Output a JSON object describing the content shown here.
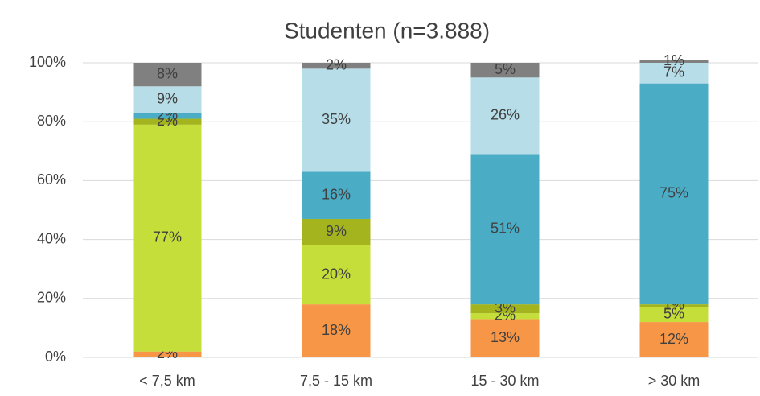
{
  "chart_data": {
    "type": "stacked_bar",
    "title": "Studenten (n=3.888)",
    "categories": [
      "< 7,5 km",
      "7,5 - 15 km",
      "15 - 30 km",
      "> 30 km"
    ],
    "series": [
      {
        "color": "#f79646",
        "values": [
          2,
          18,
          13,
          12
        ],
        "value_labels": [
          "2%",
          "18%",
          "13%",
          "12%"
        ]
      },
      {
        "color": "#c5de3a",
        "values": [
          77,
          20,
          2,
          5
        ],
        "value_labels": [
          "77%",
          "20%",
          "2%",
          "5%"
        ]
      },
      {
        "color": "#a4b41e",
        "values": [
          2,
          9,
          3,
          1
        ],
        "value_labels": [
          "2%",
          "9%",
          "3%",
          "1%"
        ]
      },
      {
        "color": "#4bacc6",
        "values": [
          2,
          16,
          51,
          75
        ],
        "value_labels": [
          "2%",
          "16%",
          "51%",
          "75%"
        ]
      },
      {
        "color": "#b7dde8",
        "values": [
          9,
          35,
          26,
          7
        ],
        "value_labels": [
          "9%",
          "35%",
          "26%",
          "7%"
        ]
      },
      {
        "color": "#808080",
        "values": [
          8,
          2,
          5,
          1
        ],
        "value_labels": [
          "8%",
          "2%",
          "5%",
          "1%"
        ]
      }
    ],
    "ylim": [
      0,
      100
    ],
    "yticks": [
      {
        "value": 0,
        "label": "0%"
      },
      {
        "value": 20,
        "label": "20%"
      },
      {
        "value": 40,
        "label": "40%"
      },
      {
        "value": 60,
        "label": "60%"
      },
      {
        "value": 80,
        "label": "80%"
      },
      {
        "value": 100,
        "label": "100%"
      }
    ],
    "grid": true
  }
}
